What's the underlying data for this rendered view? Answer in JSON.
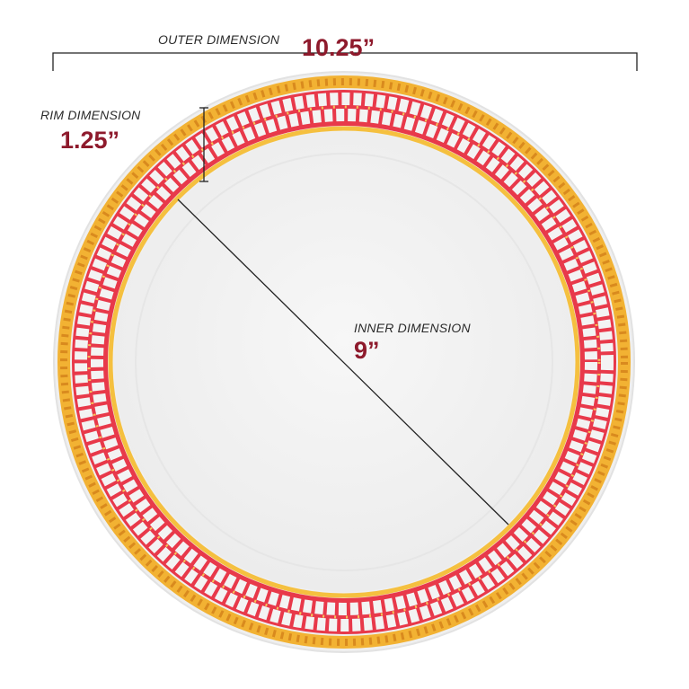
{
  "outer": {
    "label": "OUTER DIMENSION",
    "value": "10.25”"
  },
  "rim": {
    "label": "RIM DIMENSION",
    "value": "1.25”"
  },
  "inner": {
    "label": "INNER DIMENSION",
    "value": "9”"
  },
  "colors": {
    "gold": "#f2b233",
    "red": "#e8394a",
    "value_text": "#8e1a2c",
    "plate": "#f4f4f4"
  }
}
